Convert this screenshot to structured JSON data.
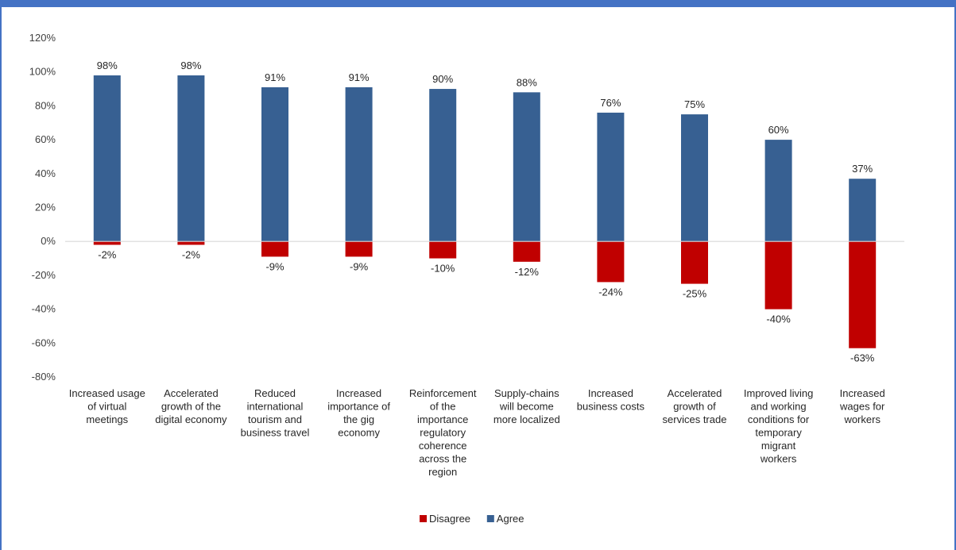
{
  "chart_data": {
    "type": "bar",
    "categories": [
      [
        "Increased usage",
        "of virtual",
        "meetings"
      ],
      [
        "Accelerated",
        "growth of the",
        "digital economy"
      ],
      [
        "Reduced",
        "international",
        "tourism and",
        "business travel"
      ],
      [
        "Increased",
        "importance of",
        "the gig",
        "economy"
      ],
      [
        "Reinforcement",
        "of the",
        "importance",
        "regulatory",
        "coherence",
        "across the",
        "region"
      ],
      [
        "Supply-chains",
        "will become",
        "more localized"
      ],
      [
        "Increased",
        "business costs"
      ],
      [
        "Accelerated",
        "growth of",
        "services trade"
      ],
      [
        "Improved living",
        "and working",
        "conditions for",
        "temporary",
        "migrant",
        "workers"
      ],
      [
        "Increased",
        "wages for",
        "workers"
      ]
    ],
    "series": [
      {
        "name": "Disagree",
        "color": "#C00000",
        "values": [
          -2,
          -2,
          -9,
          -9,
          -10,
          -12,
          -24,
          -25,
          -40,
          -63
        ],
        "labels": [
          "-2%",
          "-2%",
          "-9%",
          "-9%",
          "-10%",
          "-12%",
          "-24%",
          "-25%",
          "-40%",
          "-63%"
        ]
      },
      {
        "name": "Agree",
        "color": "#376092",
        "values": [
          98,
          98,
          91,
          91,
          90,
          88,
          76,
          75,
          60,
          37
        ],
        "labels": [
          "98%",
          "98%",
          "91%",
          "91%",
          "90%",
          "88%",
          "76%",
          "75%",
          "60%",
          "37%"
        ]
      }
    ],
    "ylim": [
      -80,
      120
    ],
    "yticks": [
      120,
      100,
      80,
      60,
      40,
      20,
      0,
      -20,
      -40,
      -60,
      -80
    ],
    "ytick_labels": [
      "120%",
      "100%",
      "80%",
      "60%",
      "40%",
      "20%",
      "0%",
      "-20%",
      "-40%",
      "-60%",
      "-80%"
    ],
    "grid": false,
    "legend_position": "bottom"
  },
  "colors": {
    "frame_accent": "#4472C4",
    "axis_line": "#D9D9D9"
  }
}
